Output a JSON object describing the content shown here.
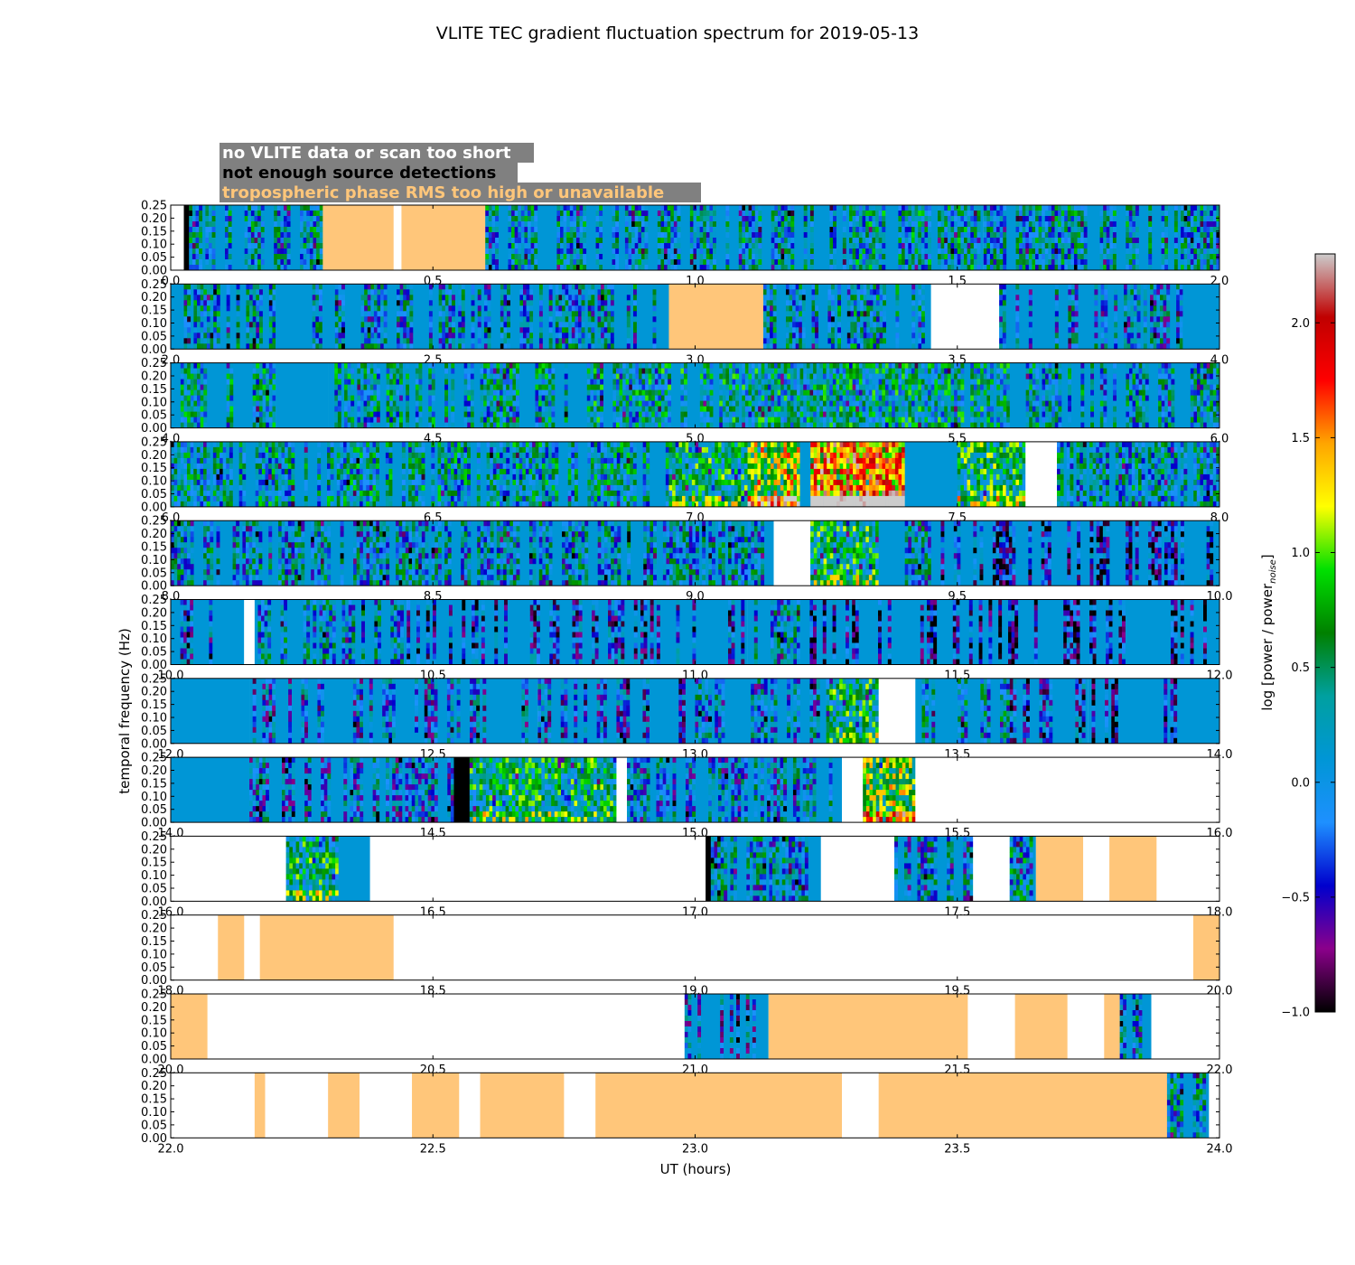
{
  "chart_data": {
    "type": "heatmap",
    "title": "VLITE TEC gradient fluctuation spectrum for 2019-05-13",
    "xlabel": "UT (hours)",
    "ylabel": "temporal frequency (Hz)",
    "ylim": [
      0,
      0.25
    ],
    "y_ticks": [
      "0.00",
      "0.05",
      "0.10",
      "0.15",
      "0.20",
      "0.25"
    ],
    "colorbar": {
      "label_main": "log [power / power",
      "label_sub": "noise",
      "label_end": "]",
      "range": [
        -1.0,
        2.3
      ],
      "ticks": [
        {
          "v": -1.0,
          "t": "−1.0"
        },
        {
          "v": -0.5,
          "t": "−0.5"
        },
        {
          "v": 0.0,
          "t": "0.0"
        },
        {
          "v": 0.5,
          "t": "0.5"
        },
        {
          "v": 1.0,
          "t": "1.0"
        },
        {
          "v": 1.5,
          "t": "1.5"
        },
        {
          "v": 2.0,
          "t": "2.0"
        }
      ],
      "stops": [
        "#000000",
        "#8b008b",
        "#0000cd",
        "#1e90ff",
        "#0096d6",
        "#00a0a0",
        "#008000",
        "#00e000",
        "#ffff00",
        "#ffa500",
        "#ff0000",
        "#c00000",
        "#cccccc"
      ]
    },
    "legend": [
      {
        "text": "no VLITE data or scan too short",
        "color": "#ffffff",
        "bg": "#808080"
      },
      {
        "text": "not enough source detections",
        "color": "#000000",
        "bg": "#808080"
      },
      {
        "text": "tropospheric phase RMS too high or unavailable",
        "color": "#ffc67a",
        "bg": "#808080"
      }
    ],
    "state_colors": {
      "none": "#ffffff",
      "nodet": "#000000",
      "trop": "#ffc67a",
      "quiet": "#0096d6"
    },
    "panels": [
      {
        "range": [
          0,
          2
        ],
        "ticks": [
          "0.0",
          "0.5",
          "1.0",
          "1.5",
          "2.0"
        ],
        "segments": [
          [
            0,
            0.025,
            "none"
          ],
          [
            0.025,
            0.035,
            "nodet"
          ],
          [
            0.035,
            0.29,
            "data",
            0.55
          ],
          [
            0.29,
            0.425,
            "trop"
          ],
          [
            0.425,
            0.44,
            "none"
          ],
          [
            0.44,
            0.6,
            "trop"
          ],
          [
            0.6,
            1.3,
            "data",
            0.55
          ],
          [
            1.3,
            1.55,
            "data",
            0.6
          ],
          [
            1.55,
            2.0,
            "data",
            0.55
          ]
        ]
      },
      {
        "range": [
          2,
          4
        ],
        "ticks": [
          "2.0",
          "2.5",
          "3.0",
          "3.5",
          "4.0"
        ],
        "segments": [
          [
            2,
            2.2,
            "data",
            0.55
          ],
          [
            2.2,
            2.27,
            "quiet"
          ],
          [
            2.27,
            2.95,
            "data",
            0.5
          ],
          [
            2.95,
            3.13,
            "trop"
          ],
          [
            3.13,
            3.45,
            "data",
            0.55
          ],
          [
            3.45,
            3.58,
            "none"
          ],
          [
            3.58,
            3.93,
            "data",
            0.45
          ],
          [
            3.93,
            4.0,
            "quiet"
          ]
        ]
      },
      {
        "range": [
          4,
          6
        ],
        "ticks": [
          "4.0",
          "4.5",
          "5.0",
          "5.5",
          "6.0"
        ],
        "segments": [
          [
            4,
            4.2,
            "data",
            0.6
          ],
          [
            4.2,
            4.3,
            "quiet"
          ],
          [
            4.3,
            4.8,
            "data",
            0.6
          ],
          [
            4.8,
            5.2,
            "data",
            0.65
          ],
          [
            5.2,
            5.6,
            "data",
            0.65
          ],
          [
            5.6,
            6.0,
            "data",
            0.55
          ]
        ]
      },
      {
        "range": [
          6,
          8
        ],
        "ticks": [
          "6.0",
          "6.5",
          "7.0",
          "7.5",
          "8.0"
        ],
        "segments": [
          [
            6,
            6.95,
            "data",
            0.6
          ],
          [
            6.95,
            7.1,
            "data",
            0.75
          ],
          [
            7.1,
            7.2,
            "data",
            1.1
          ],
          [
            7.2,
            7.22,
            "quiet"
          ],
          [
            7.22,
            7.4,
            "data",
            1.45
          ],
          [
            7.4,
            7.5,
            "quiet"
          ],
          [
            7.5,
            7.63,
            "data",
            0.8
          ],
          [
            7.63,
            7.69,
            "none"
          ],
          [
            7.69,
            8.0,
            "data",
            0.55
          ]
        ]
      },
      {
        "range": [
          8,
          10
        ],
        "ticks": [
          "8.0",
          "8.5",
          "9.0",
          "9.5",
          "10.0"
        ],
        "segments": [
          [
            8,
            9.15,
            "data",
            0.5
          ],
          [
            9.15,
            9.22,
            "none"
          ],
          [
            9.22,
            9.35,
            "data",
            0.75
          ],
          [
            9.35,
            9.4,
            "quiet"
          ],
          [
            9.4,
            9.45,
            "data",
            0.5
          ],
          [
            9.45,
            10.0,
            "data",
            0.2
          ]
        ]
      },
      {
        "range": [
          10,
          12
        ],
        "ticks": [
          "10.0",
          "10.5",
          "11.0",
          "11.5",
          "12.0"
        ],
        "segments": [
          [
            10,
            10.14,
            "data",
            0.3
          ],
          [
            10.14,
            10.16,
            "none"
          ],
          [
            10.16,
            10.45,
            "data",
            0.5
          ],
          [
            10.45,
            11.1,
            "data",
            0.25
          ],
          [
            11.1,
            11.2,
            "data",
            0.5
          ],
          [
            11.2,
            12.0,
            "data",
            0.15
          ]
        ]
      },
      {
        "range": [
          12,
          14
        ],
        "ticks": [
          "12.0",
          "12.5",
          "13.0",
          "13.5",
          "14.0"
        ],
        "segments": [
          [
            12,
            12.15,
            "quiet"
          ],
          [
            12.15,
            12.7,
            "data",
            0.35
          ],
          [
            12.7,
            13.0,
            "data",
            0.3
          ],
          [
            13.0,
            13.25,
            "data",
            0.45
          ],
          [
            13.25,
            13.35,
            "data",
            0.75
          ],
          [
            13.35,
            13.42,
            "none"
          ],
          [
            13.42,
            13.6,
            "data",
            0.5
          ],
          [
            13.6,
            13.75,
            "data",
            0.25
          ],
          [
            13.75,
            14.0,
            "data",
            0.15
          ]
        ]
      },
      {
        "range": [
          14,
          16
        ],
        "ticks": [
          "14.0",
          "14.5",
          "15.0",
          "15.5",
          "16.0"
        ],
        "segments": [
          [
            14,
            14.15,
            "quiet"
          ],
          [
            14.15,
            14.54,
            "data",
            0.4
          ],
          [
            14.54,
            14.57,
            "nodet"
          ],
          [
            14.57,
            14.85,
            "data",
            0.75
          ],
          [
            14.85,
            14.87,
            "none"
          ],
          [
            14.87,
            15.28,
            "data",
            0.45
          ],
          [
            15.28,
            15.32,
            "none"
          ],
          [
            15.32,
            15.42,
            "data",
            1.0
          ],
          [
            15.42,
            15.42,
            "none"
          ],
          [
            15.42,
            16.0,
            "none"
          ]
        ]
      },
      {
        "range": [
          16,
          18
        ],
        "ticks": [
          "16.0",
          "16.5",
          "17.0",
          "17.5",
          "18.0"
        ],
        "segments": [
          [
            16,
            16.22,
            "none"
          ],
          [
            16.22,
            16.32,
            "data",
            0.75
          ],
          [
            16.32,
            16.38,
            "quiet"
          ],
          [
            16.38,
            17.02,
            "none"
          ],
          [
            17.02,
            17.03,
            "nodet"
          ],
          [
            17.03,
            17.24,
            "data",
            0.5
          ],
          [
            17.24,
            17.38,
            "none"
          ],
          [
            17.38,
            17.53,
            "data",
            0.45
          ],
          [
            17.53,
            17.6,
            "none"
          ],
          [
            17.6,
            17.65,
            "data",
            0.55
          ],
          [
            17.65,
            17.74,
            "trop"
          ],
          [
            17.74,
            17.79,
            "none"
          ],
          [
            17.79,
            17.88,
            "trop"
          ],
          [
            17.88,
            18.0,
            "none"
          ]
        ]
      },
      {
        "range": [
          18,
          20
        ],
        "ticks": [
          "18.0",
          "18.5",
          "19.0",
          "19.5",
          "20.0"
        ],
        "segments": [
          [
            18,
            18.09,
            "none"
          ],
          [
            18.09,
            18.14,
            "trop"
          ],
          [
            18.14,
            18.17,
            "none"
          ],
          [
            18.17,
            18.425,
            "trop"
          ],
          [
            18.425,
            19.95,
            "none"
          ],
          [
            19.95,
            20.0,
            "trop"
          ]
        ]
      },
      {
        "range": [
          20,
          22
        ],
        "ticks": [
          "20.0",
          "20.5",
          "21.0",
          "21.5",
          "22.0"
        ],
        "segments": [
          [
            20,
            20.07,
            "trop"
          ],
          [
            20.07,
            20.98,
            "none"
          ],
          [
            20.98,
            21.14,
            "data",
            0.35
          ],
          [
            21.14,
            21.52,
            "trop"
          ],
          [
            21.52,
            21.61,
            "none"
          ],
          [
            21.61,
            21.71,
            "trop"
          ],
          [
            21.71,
            21.78,
            "none"
          ],
          [
            21.78,
            21.81,
            "trop"
          ],
          [
            21.81,
            21.87,
            "data",
            0.5
          ],
          [
            21.87,
            22.0,
            "none"
          ]
        ]
      },
      {
        "range": [
          22,
          24
        ],
        "ticks": [
          "22.0",
          "22.5",
          "23.0",
          "23.5",
          "24.0"
        ],
        "segments": [
          [
            22,
            22.16,
            "none"
          ],
          [
            22.16,
            22.18,
            "trop"
          ],
          [
            22.18,
            22.3,
            "none"
          ],
          [
            22.3,
            22.36,
            "trop"
          ],
          [
            22.36,
            22.46,
            "none"
          ],
          [
            22.46,
            22.55,
            "trop"
          ],
          [
            22.55,
            22.59,
            "none"
          ],
          [
            22.59,
            22.75,
            "trop"
          ],
          [
            22.75,
            22.81,
            "none"
          ],
          [
            22.81,
            23.28,
            "trop"
          ],
          [
            23.28,
            23.35,
            "none"
          ],
          [
            23.35,
            23.9,
            "trop"
          ],
          [
            23.9,
            23.98,
            "data",
            0.55
          ],
          [
            23.98,
            24.0,
            "none"
          ]
        ]
      }
    ]
  }
}
